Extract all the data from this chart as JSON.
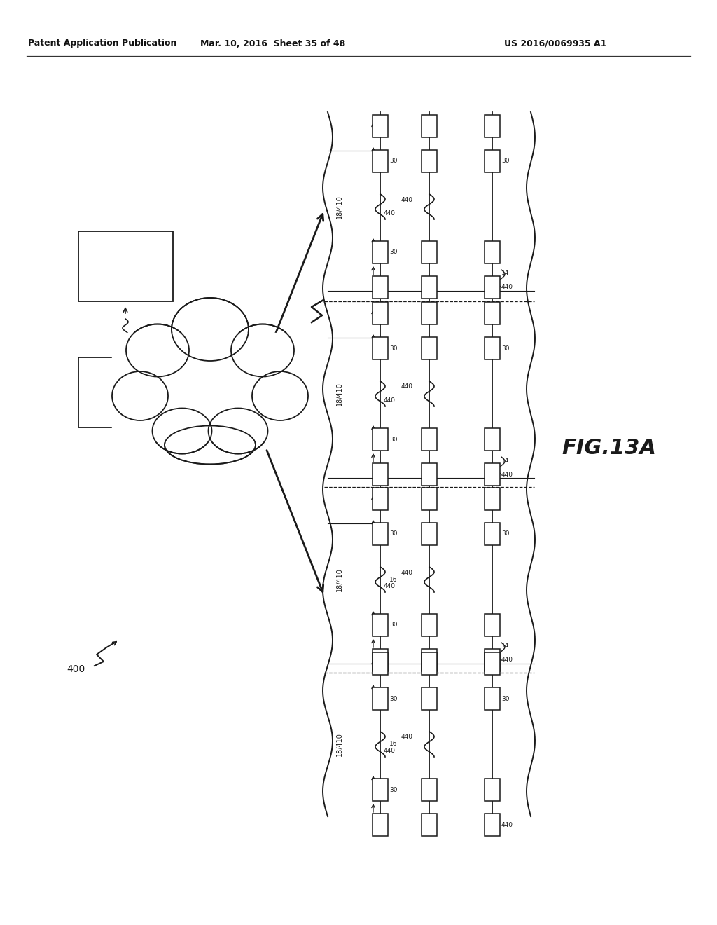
{
  "bg_color": "#ffffff",
  "header_left": "Patent Application Publication",
  "header_mid": "Mar. 10, 2016  Sheet 35 of 48",
  "header_right": "US 2016/0069935 A1",
  "fig_label": "FIG.13A",
  "line_color": "#1a1a1a"
}
